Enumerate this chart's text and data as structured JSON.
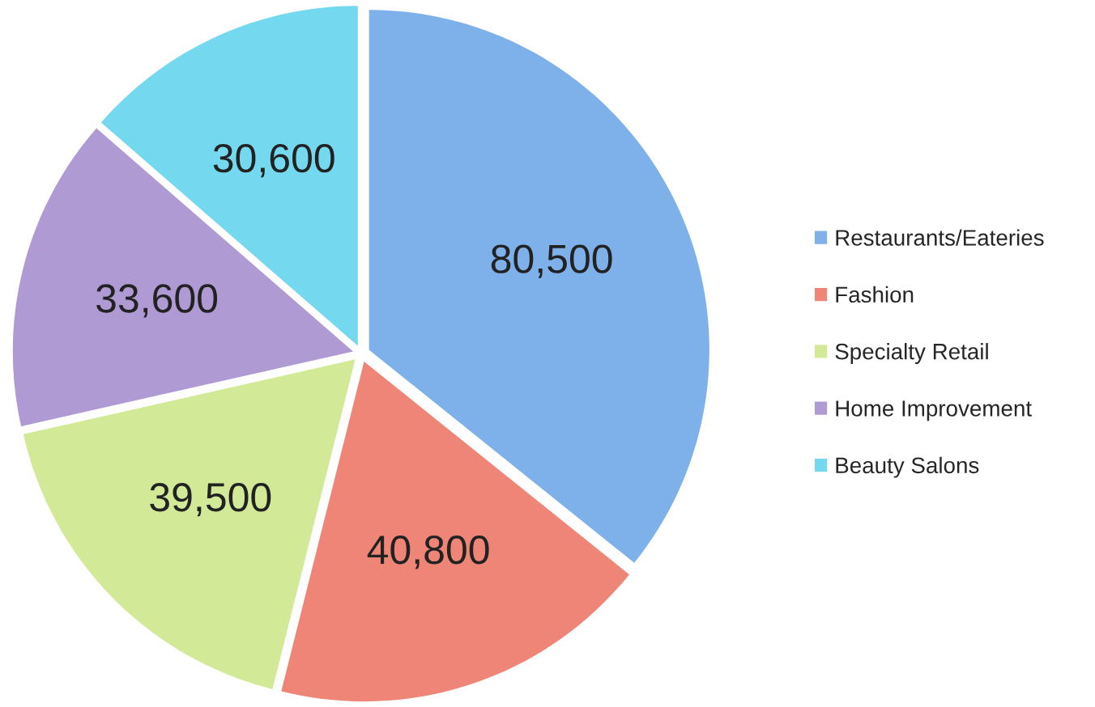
{
  "chart_data": {
    "type": "pie",
    "categories": [
      "Restaurants/Eateries",
      "Fashion",
      "Specialty Retail",
      "Home Improvement",
      "Beauty Salons"
    ],
    "values": [
      80500,
      40800,
      39500,
      33600,
      30600
    ],
    "colors": [
      "#7eb0ea",
      "#ee8577",
      "#d2ea98",
      "#b09ad4",
      "#74d8ee"
    ],
    "value_labels": [
      "80,500",
      "40,800",
      "39,500",
      "33,600",
      "30,600"
    ],
    "legend": "right"
  }
}
